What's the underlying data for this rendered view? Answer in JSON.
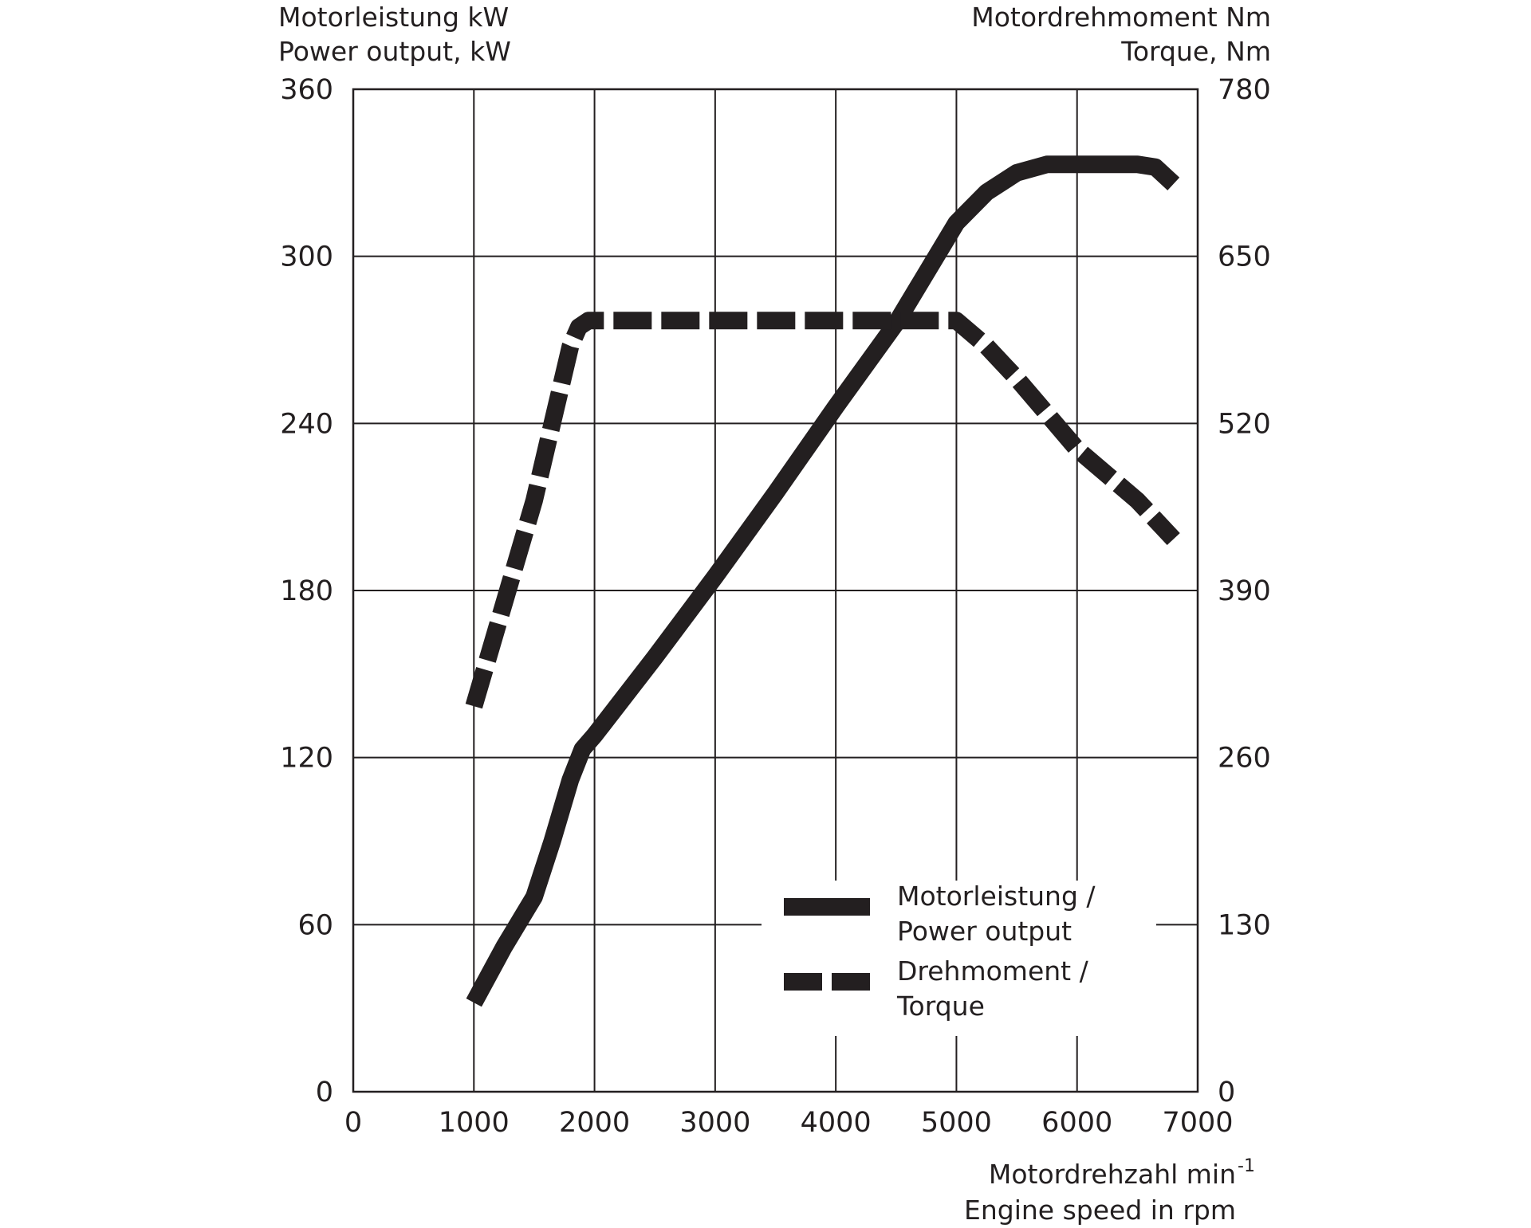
{
  "chart_data": {
    "type": "line",
    "x_axis": {
      "label_line1": "Motordrehzahl min",
      "label_sup": "-1",
      "label_line2": "Engine speed in rpm",
      "range": [
        0,
        7000
      ],
      "ticks": [
        "0",
        "1000",
        "2000",
        "3000",
        "4000",
        "5000",
        "6000",
        "7000"
      ]
    },
    "y_left": {
      "label_line1": "Motorleistung kW",
      "label_line2": "Power output, kW",
      "range": [
        0,
        360
      ],
      "ticks": [
        "0",
        "60",
        "120",
        "180",
        "240",
        "300",
        "360"
      ]
    },
    "y_right": {
      "label_line1": "Motordrehmoment Nm",
      "label_line2": "Torque, Nm",
      "range": [
        0,
        780
      ],
      "ticks": [
        "0",
        "130",
        "260",
        "390",
        "520",
        "650",
        "780"
      ]
    },
    "grid": true,
    "legend": {
      "placement": "bottom-right",
      "items": [
        {
          "line1": "Motorleistung /",
          "line2": "Power output",
          "style": "solid"
        },
        {
          "line1": "Drehmoment /",
          "line2": "Torque",
          "style": "dashed"
        }
      ]
    },
    "series": [
      {
        "name": "Motorleistung / Power output",
        "axis": "left",
        "x": [
          1000,
          1250,
          1500,
          1650,
          1800,
          1900,
          2000,
          2500,
          3000,
          3500,
          4000,
          4500,
          5000,
          5250,
          5500,
          5750,
          6000,
          6500,
          6650,
          6800
        ],
        "y": [
          32,
          52,
          70,
          90,
          112,
          123,
          128,
          156,
          185,
          215,
          246,
          276,
          312,
          323,
          330,
          333,
          333,
          333,
          332,
          326
        ]
      },
      {
        "name": "Drehmoment / Torque",
        "axis": "right",
        "x": [
          1000,
          1250,
          1500,
          1650,
          1800,
          1870,
          1950,
          2000,
          3000,
          4000,
          5000,
          5250,
          5500,
          6000,
          6500,
          6800
        ],
        "y": [
          300,
          380,
          460,
          520,
          580,
          595,
          600,
          600,
          600,
          600,
          600,
          580,
          555,
          500,
          460,
          430
        ]
      }
    ]
  }
}
